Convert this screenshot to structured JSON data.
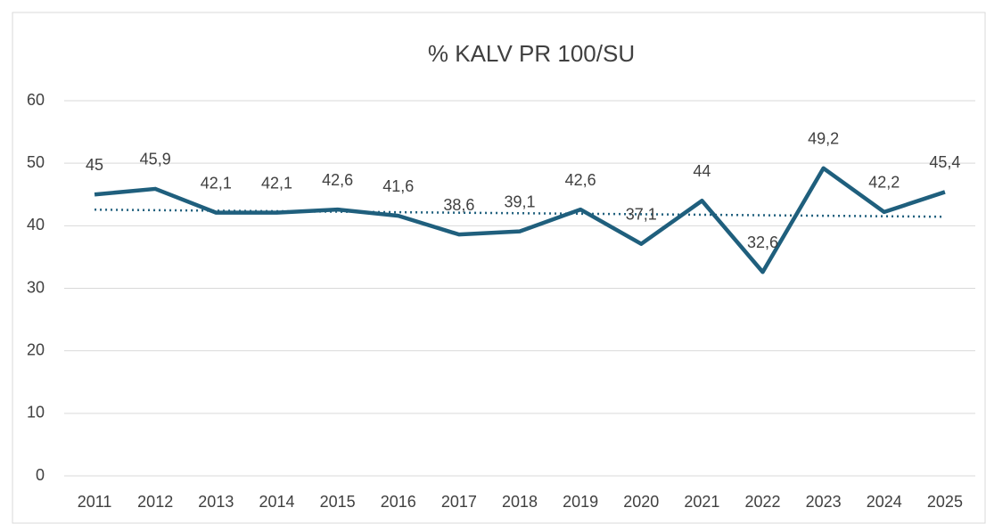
{
  "chart_data": {
    "type": "line",
    "title": "% KALV PR 100/SU",
    "categories": [
      "2011",
      "2012",
      "2013",
      "2014",
      "2015",
      "2016",
      "2017",
      "2018",
      "2019",
      "2020",
      "2021",
      "2022",
      "2023",
      "2024",
      "2025"
    ],
    "series": [
      {
        "color": "#1f5f7d",
        "values": [
          45,
          45.9,
          42.1,
          42.1,
          42.6,
          41.6,
          38.6,
          39.1,
          42.6,
          37.1,
          44,
          32.6,
          49.2,
          42.2,
          45.4
        ],
        "value_labels": [
          "45",
          "45,9",
          "42,1",
          "42,1",
          "42,6",
          "41,6",
          "38,6",
          "39,1",
          "42,6",
          "37,1",
          "44",
          "32,6",
          "49,2",
          "42,2",
          "45,4"
        ]
      }
    ],
    "trendline": "linear",
    "ylim": [
      0,
      60
    ],
    "yticks": [
      0,
      10,
      20,
      30,
      40,
      50,
      60
    ],
    "grid": true
  }
}
